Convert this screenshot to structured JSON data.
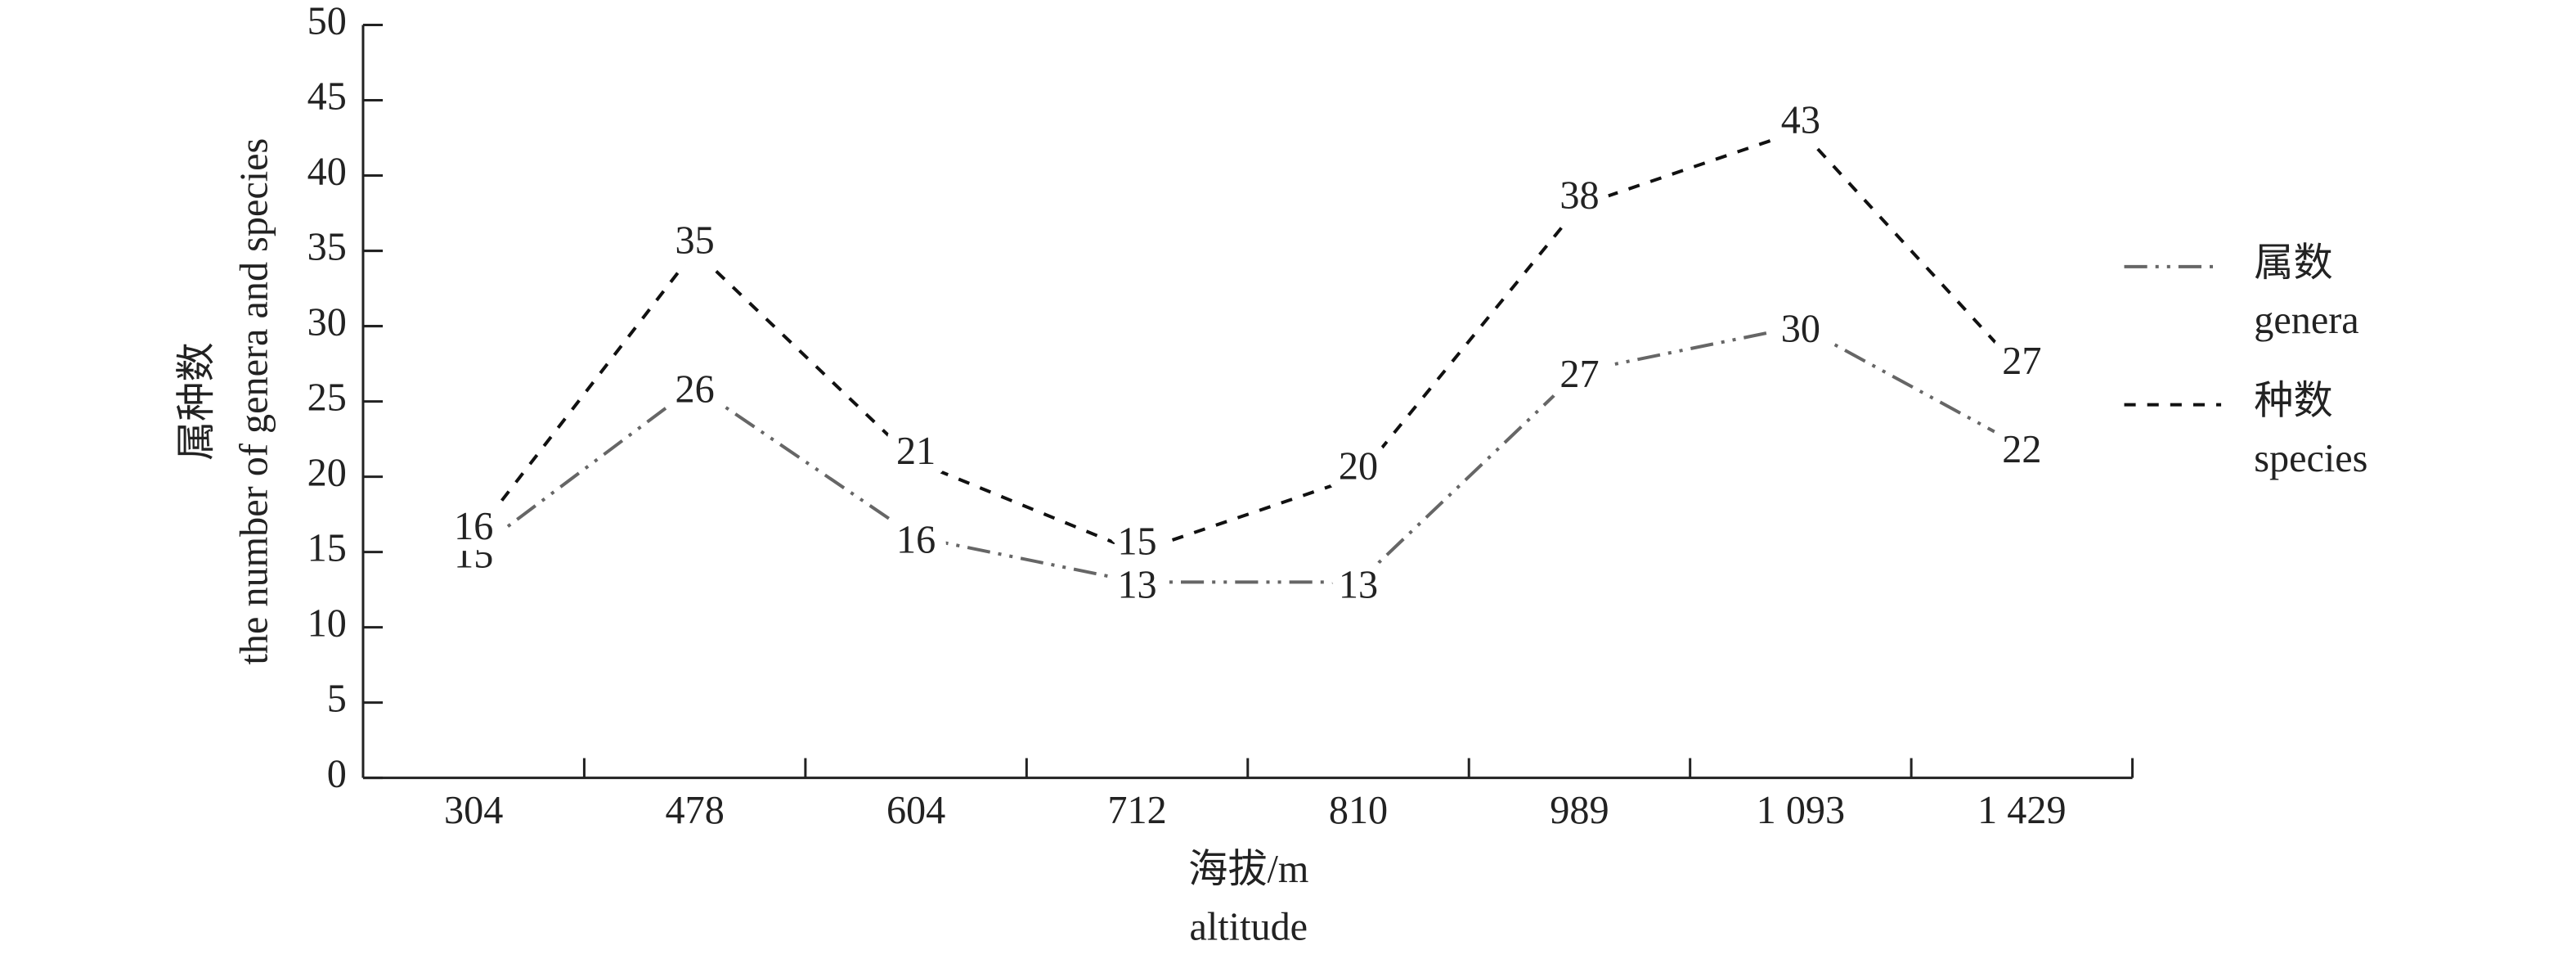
{
  "chart_data": {
    "type": "line",
    "ylabel": [
      "属种数",
      "the number of genera and species"
    ],
    "xlabel": [
      "海拔/m",
      "altitude"
    ],
    "categories": [
      "304",
      "478",
      "604",
      "712",
      "810",
      "989",
      "1 093",
      "1 429"
    ],
    "series": [
      {
        "name": [
          "属数",
          "genera"
        ],
        "color": "#666666",
        "dash": "dashdotdot",
        "values": [
          15,
          26,
          16,
          13,
          13,
          27,
          30,
          22
        ]
      },
      {
        "name": [
          "种数",
          "species"
        ],
        "color": "#111111",
        "dash": "dashed",
        "values": [
          16,
          35,
          21,
          15,
          20,
          38,
          43,
          27
        ]
      }
    ],
    "ylim": [
      0,
      50
    ],
    "yticks": [
      0,
      5,
      10,
      15,
      20,
      25,
      30,
      35,
      40,
      45,
      50
    ],
    "data_labels": true,
    "legend": "right"
  }
}
